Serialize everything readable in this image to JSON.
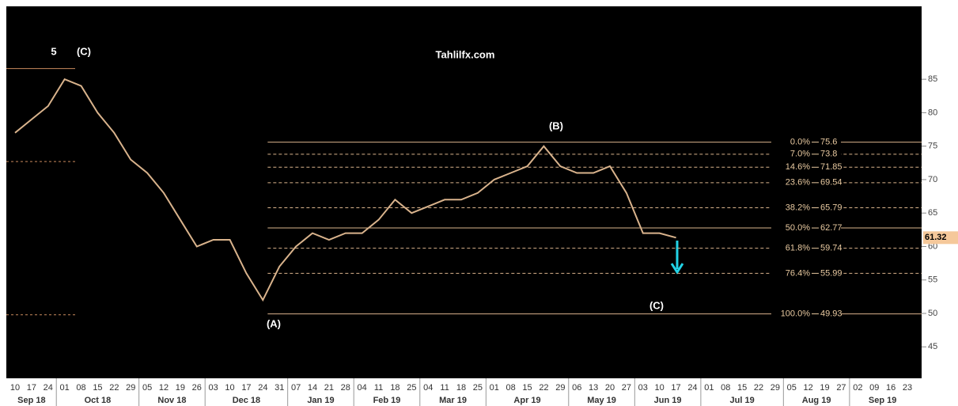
{
  "chart_data": {
    "type": "line",
    "title": "Tahlilfx.com",
    "categories": [
      "10",
      "17",
      "24",
      "01",
      "08",
      "15",
      "22",
      "29",
      "05",
      "12",
      "19",
      "26",
      "03",
      "10",
      "17",
      "24",
      "31",
      "07",
      "14",
      "21",
      "28",
      "04",
      "11",
      "18",
      "25",
      "04",
      "11",
      "18",
      "25",
      "01",
      "08",
      "15",
      "22",
      "29",
      "06",
      "13",
      "20",
      "27",
      "03",
      "10",
      "17",
      "24",
      "01",
      "08",
      "15",
      "22",
      "29",
      "05",
      "12",
      "19",
      "27",
      "02",
      "09",
      "16",
      "23"
    ],
    "months": [
      "Sep 18",
      "Oct 18",
      "Nov 18",
      "Dec 18",
      "Jan 19",
      "Feb 19",
      "Mar 19",
      "Apr 19",
      "May 19",
      "Jun 19",
      "Jul 19",
      "Aug 19",
      "Sep 19"
    ],
    "series": [
      {
        "color": "#d9b38c",
        "values": [
          77,
          79,
          81,
          85,
          84,
          80,
          77,
          73,
          71,
          68,
          64,
          60,
          61,
          61,
          56,
          52,
          57,
          60,
          62,
          61,
          62,
          62,
          64,
          67,
          65,
          66,
          67,
          67,
          68,
          70,
          71,
          72,
          75,
          72,
          71,
          71,
          72,
          68,
          62,
          62,
          61.32,
          null,
          null,
          null,
          null,
          null,
          null,
          null,
          null,
          null,
          null,
          null,
          null,
          null,
          null
        ]
      }
    ],
    "ylim": [
      40.3,
      95.9
    ],
    "yticks": [
      45,
      50,
      55,
      60,
      65,
      70,
      75,
      80,
      85
    ],
    "last_price": 61.32,
    "fib_levels": [
      {
        "ratio": "0.0%",
        "value": 75.6,
        "dashed": false
      },
      {
        "ratio": "7.0%",
        "value": 73.8,
        "dashed": true
      },
      {
        "ratio": "14.6%",
        "value": 71.85,
        "dashed": true
      },
      {
        "ratio": "23.6%",
        "value": 69.54,
        "dashed": true
      },
      {
        "ratio": "38.2%",
        "value": 65.79,
        "dashed": true
      },
      {
        "ratio": "50.0%",
        "value": 62.77,
        "dashed": false
      },
      {
        "ratio": "61.8%",
        "value": 59.74,
        "dashed": true
      },
      {
        "ratio": "76.4%",
        "value": 55.99,
        "dashed": true
      },
      {
        "ratio": "100.0%",
        "value": 49.93,
        "dashed": false
      }
    ],
    "reference_lines": [
      {
        "value": 86.6,
        "dashed": false
      },
      {
        "value": 72.7,
        "dashed": true
      },
      {
        "value": 49.8,
        "dashed": true
      }
    ],
    "annotations": [
      "5",
      "(C)",
      "(B)",
      "(A)",
      "(C)"
    ]
  }
}
